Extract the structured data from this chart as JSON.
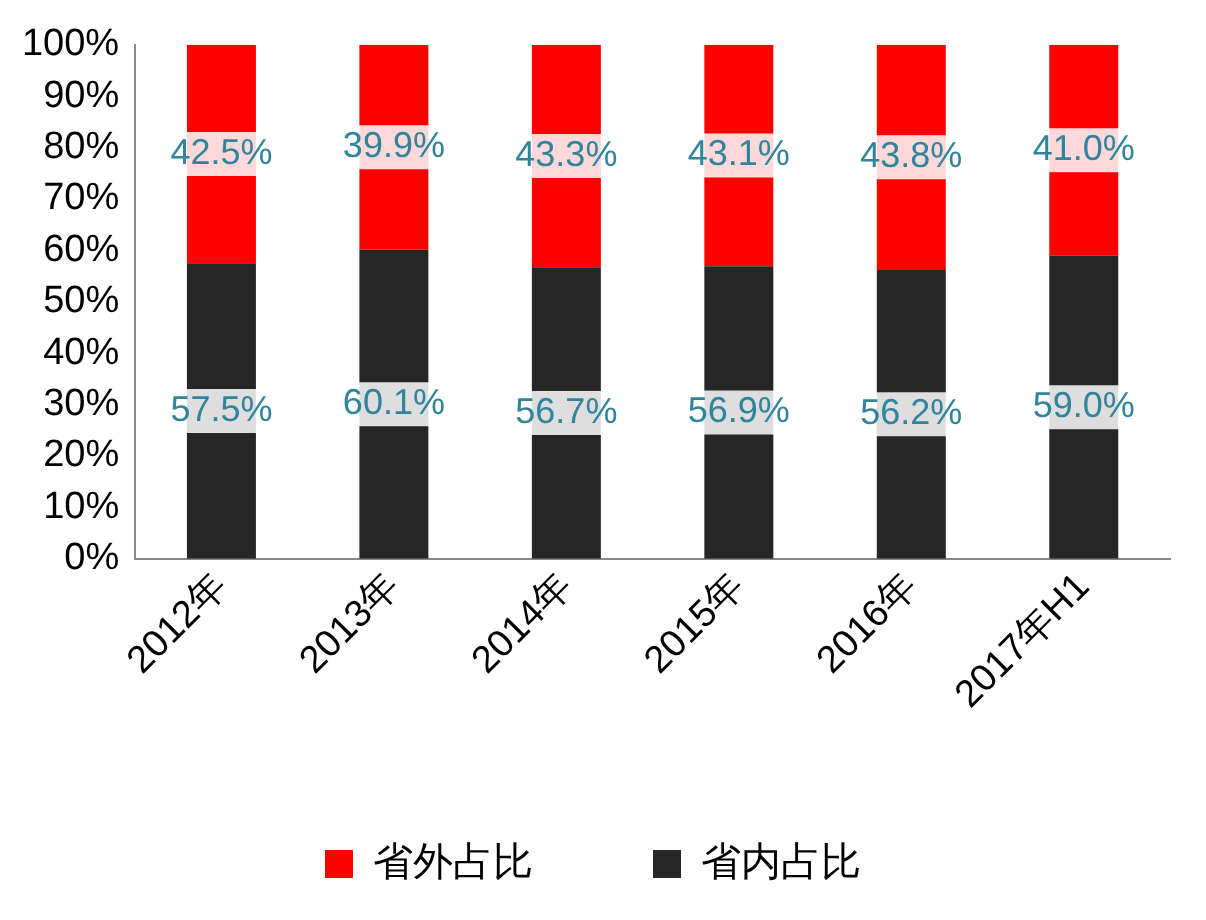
{
  "chart_data": {
    "type": "bar",
    "stacked": true,
    "categories": [
      "2012年",
      "2013年",
      "2014年",
      "2015年",
      "2016年",
      "2017年H1"
    ],
    "series": [
      {
        "name": "省内占比",
        "color": "#262626",
        "values": [
          57.5,
          60.1,
          56.7,
          56.9,
          56.2,
          59.0
        ],
        "value_labels": [
          "57.5%",
          "60.1%",
          "56.7%",
          "56.9%",
          "56.2%",
          "59.0%"
        ]
      },
      {
        "name": "省外占比",
        "color": "#ff0000",
        "values": [
          42.5,
          39.9,
          43.3,
          43.1,
          43.8,
          41.0
        ],
        "value_labels": [
          "42.5%",
          "39.9%",
          "43.3%",
          "43.1%",
          "43.8%",
          "41.0%"
        ]
      }
    ],
    "ylim": [
      0,
      100
    ],
    "yticks": [
      {
        "value": 0,
        "label": "0%"
      },
      {
        "value": 10,
        "label": "10%"
      },
      {
        "value": 20,
        "label": "20%"
      },
      {
        "value": 30,
        "label": "30%"
      },
      {
        "value": 40,
        "label": "40%"
      },
      {
        "value": 50,
        "label": "50%"
      },
      {
        "value": 60,
        "label": "60%"
      },
      {
        "value": 70,
        "label": "70%"
      },
      {
        "value": 80,
        "label": "80%"
      },
      {
        "value": 90,
        "label": "90%"
      },
      {
        "value": 100,
        "label": "100%"
      }
    ],
    "grid": false,
    "legend": "bottom"
  }
}
